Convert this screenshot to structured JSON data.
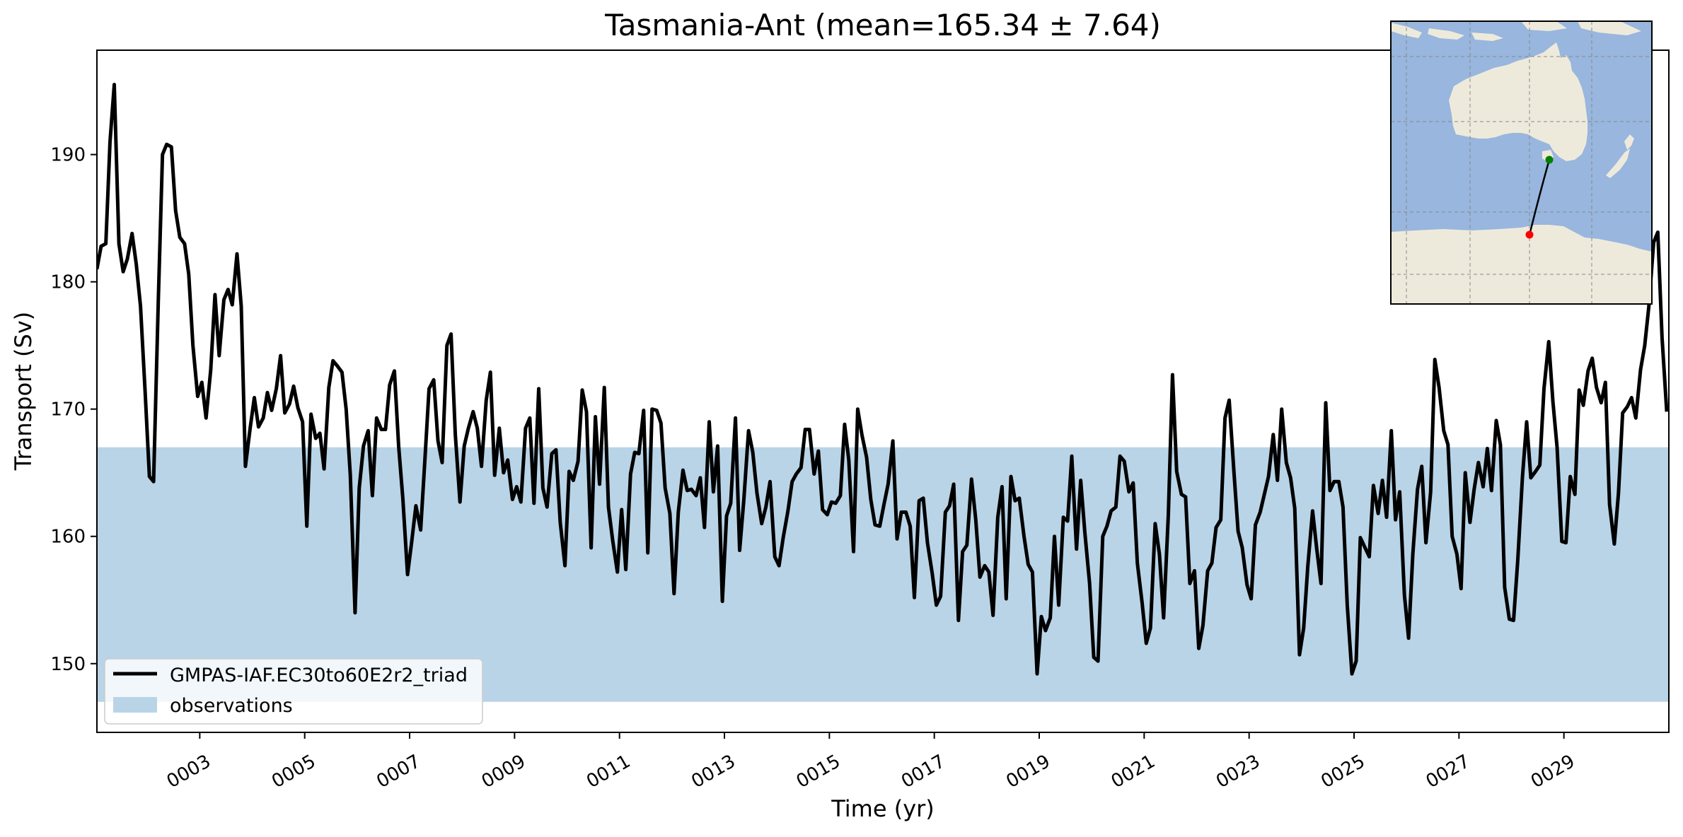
{
  "chart_data": {
    "type": "line",
    "title": "Tasmania-Ant (mean=165.34 ± 7.64)",
    "xlabel": "Time (yr)",
    "ylabel": "Transport (Sv)",
    "xlim": [
      1.04,
      31.0
    ],
    "ylim": [
      144.6,
      198.2
    ],
    "xticks": [
      3,
      5,
      7,
      9,
      11,
      13,
      15,
      17,
      19,
      21,
      23,
      25,
      27,
      29
    ],
    "xtick_labels": [
      "0003",
      "0005",
      "0007",
      "0009",
      "0011",
      "0013",
      "0015",
      "0017",
      "0019",
      "0021",
      "0023",
      "0025",
      "0027",
      "0029"
    ],
    "yticks": [
      150,
      160,
      170,
      180,
      190
    ],
    "ytick_labels": [
      "150",
      "160",
      "170",
      "180",
      "190"
    ],
    "observations_band": {
      "name": "observations",
      "ymin": 147.0,
      "ymax": 167.0,
      "color": "#b9d4e7"
    },
    "legend_position": "lower-left",
    "grid": false,
    "series": [
      {
        "name": "GMPAS-IAF.EC30to60E2r2_triad",
        "color": "#000000",
        "x": [
          1.04,
          1.12,
          1.21,
          1.29,
          1.37,
          1.46,
          1.54,
          1.62,
          1.71,
          1.79,
          1.87,
          1.96,
          2.04,
          2.12,
          2.21,
          2.29,
          2.37,
          2.46,
          2.54,
          2.62,
          2.71,
          2.79,
          2.87,
          2.96,
          3.04,
          3.12,
          3.21,
          3.29,
          3.37,
          3.46,
          3.54,
          3.62,
          3.71,
          3.79,
          3.87,
          3.96,
          4.04,
          4.12,
          4.21,
          4.29,
          4.37,
          4.46,
          4.54,
          4.62,
          4.71,
          4.79,
          4.87,
          4.96,
          5.04,
          5.12,
          5.21,
          5.29,
          5.37,
          5.46,
          5.54,
          5.62,
          5.71,
          5.79,
          5.87,
          5.96,
          6.04,
          6.12,
          6.21,
          6.29,
          6.37,
          6.46,
          6.54,
          6.62,
          6.71,
          6.79,
          6.87,
          6.96,
          7.04,
          7.12,
          7.21,
          7.29,
          7.37,
          7.46,
          7.54,
          7.62,
          7.71,
          7.79,
          7.87,
          7.96,
          8.04,
          8.12,
          8.21,
          8.29,
          8.37,
          8.46,
          8.54,
          8.62,
          8.71,
          8.79,
          8.87,
          8.96,
          9.04,
          9.12,
          9.21,
          9.29,
          9.37,
          9.46,
          9.54,
          9.62,
          9.71,
          9.79,
          9.87,
          9.96,
          10.04,
          10.12,
          10.21,
          10.29,
          10.37,
          10.46,
          10.54,
          10.62,
          10.71,
          10.79,
          10.87,
          10.96,
          11.04,
          11.12,
          11.21,
          11.29,
          11.37,
          11.46,
          11.54,
          11.62,
          11.71,
          11.79,
          11.87,
          11.96,
          12.04,
          12.12,
          12.21,
          12.29,
          12.37,
          12.46,
          12.54,
          12.62,
          12.71,
          12.79,
          12.87,
          12.96,
          13.04,
          13.12,
          13.21,
          13.29,
          13.37,
          13.46,
          13.54,
          13.62,
          13.71,
          13.79,
          13.87,
          13.96,
          14.04,
          14.12,
          14.21,
          14.29,
          14.37,
          14.46,
          14.54,
          14.62,
          14.71,
          14.79,
          14.87,
          14.96,
          15.04,
          15.12,
          15.21,
          15.29,
          15.37,
          15.46,
          15.54,
          15.62,
          15.71,
          15.79,
          15.87,
          15.96,
          16.04,
          16.12,
          16.21,
          16.29,
          16.37,
          16.46,
          16.54,
          16.62,
          16.71,
          16.79,
          16.87,
          16.96,
          17.04,
          17.12,
          17.21,
          17.29,
          17.37,
          17.46,
          17.54,
          17.62,
          17.71,
          17.79,
          17.87,
          17.96,
          18.04,
          18.12,
          18.21,
          18.29,
          18.37,
          18.46,
          18.54,
          18.62,
          18.71,
          18.79,
          18.87,
          18.96,
          19.04,
          19.12,
          19.21,
          19.29,
          19.37,
          19.46,
          19.54,
          19.62,
          19.71,
          19.79,
          19.87,
          19.96,
          20.04,
          20.12,
          20.21,
          20.29,
          20.37,
          20.46,
          20.54,
          20.62,
          20.71,
          20.79,
          20.87,
          20.96,
          21.04,
          21.12,
          21.21,
          21.29,
          21.37,
          21.46,
          21.54,
          21.62,
          21.71,
          21.79,
          21.87,
          21.96,
          22.04,
          22.12,
          22.21,
          22.29,
          22.37,
          22.46,
          22.54,
          22.62,
          22.71,
          22.79,
          22.87,
          22.96,
          23.04,
          23.12,
          23.21,
          23.29,
          23.37,
          23.46,
          23.54,
          23.62,
          23.71,
          23.79,
          23.87,
          23.96,
          24.04,
          24.12,
          24.21,
          24.29,
          24.37,
          24.46,
          24.54,
          24.62,
          24.71,
          24.79,
          24.87,
          24.96,
          25.04,
          25.12,
          25.21,
          25.29,
          25.37,
          25.46,
          25.54,
          25.62,
          25.71,
          25.79,
          25.87,
          25.96,
          26.04,
          26.12,
          26.21,
          26.29,
          26.37,
          26.46,
          26.54,
          26.62,
          26.71,
          26.79,
          26.87,
          26.96,
          27.04,
          27.12,
          27.21,
          27.29,
          27.37,
          27.46,
          27.54,
          27.62,
          27.71,
          27.79,
          27.87,
          27.96,
          28.04,
          28.12,
          28.21,
          28.29,
          28.37,
          28.46,
          28.54,
          28.62,
          28.71,
          28.79,
          28.87,
          28.96,
          29.04,
          29.12,
          29.21,
          29.29,
          29.37,
          29.46,
          29.54,
          29.62,
          29.71,
          29.79,
          29.87,
          29.96,
          30.04,
          30.12,
          30.21,
          30.29,
          30.37,
          30.46,
          30.54,
          30.62,
          30.71,
          30.79,
          30.87,
          30.96
        ],
        "y": [
          181.0,
          182.8,
          183.0,
          191.0,
          195.5,
          183.0,
          180.8,
          181.8,
          183.8,
          181.4,
          178.1,
          171.3,
          164.7,
          164.3,
          178.6,
          190.0,
          190.8,
          190.6,
          185.6,
          183.5,
          183.0,
          180.6,
          175.0,
          171.0,
          172.1,
          169.3,
          173.1,
          179.0,
          174.2,
          178.6,
          179.4,
          178.2,
          182.2,
          178.1,
          165.5,
          168.5,
          170.9,
          168.6,
          169.3,
          171.3,
          169.9,
          171.6,
          174.2,
          169.7,
          170.4,
          171.8,
          170.1,
          169.0,
          160.8,
          169.6,
          167.7,
          168.1,
          165.3,
          171.7,
          173.8,
          173.4,
          172.9,
          170.0,
          164.8,
          154.0,
          163.8,
          167.1,
          168.3,
          163.2,
          169.3,
          168.4,
          168.4,
          171.9,
          173.0,
          167.1,
          163.0,
          157.0,
          159.6,
          162.4,
          160.5,
          165.9,
          171.6,
          172.3,
          167.5,
          165.8,
          175.0,
          175.9,
          168.0,
          162.7,
          167.1,
          168.5,
          169.8,
          168.5,
          165.5,
          170.7,
          172.9,
          164.8,
          168.5,
          165.0,
          166.0,
          162.9,
          163.9,
          162.7,
          168.5,
          169.3,
          162.6,
          171.6,
          163.8,
          162.3,
          166.5,
          166.8,
          161.1,
          157.7,
          165.1,
          164.4,
          165.9,
          171.5,
          169.8,
          159.1,
          169.4,
          164.1,
          171.7,
          162.3,
          159.7,
          157.2,
          162.1,
          157.4,
          164.9,
          166.6,
          166.5,
          169.9,
          158.7,
          170.0,
          169.9,
          168.9,
          163.8,
          161.8,
          155.5,
          161.9,
          165.2,
          163.6,
          163.7,
          163.2,
          164.6,
          160.7,
          169.0,
          163.5,
          167.1,
          154.9,
          161.6,
          162.6,
          169.3,
          158.9,
          162.9,
          168.3,
          166.6,
          163.4,
          161.0,
          162.3,
          164.3,
          158.4,
          157.7,
          159.9,
          162.0,
          164.3,
          164.9,
          165.4,
          168.4,
          168.4,
          164.9,
          166.7,
          162.1,
          161.7,
          162.7,
          162.6,
          163.2,
          168.8,
          166.0,
          158.8,
          170.0,
          168.0,
          166.2,
          162.9,
          160.9,
          160.8,
          162.5,
          164.1,
          167.5,
          159.8,
          161.9,
          161.9,
          160.8,
          155.2,
          162.8,
          163.0,
          159.5,
          157.1,
          154.6,
          155.3,
          161.9,
          162.4,
          164.1,
          153.4,
          158.8,
          159.3,
          164.5,
          161.3,
          156.8,
          157.7,
          157.2,
          153.8,
          161.5,
          163.9,
          155.1,
          164.7,
          162.8,
          163.0,
          160.0,
          157.8,
          157.2,
          149.2,
          153.7,
          152.6,
          153.6,
          160.0,
          154.6,
          161.5,
          161.2,
          166.3,
          159.0,
          164.4,
          160.3,
          156.3,
          150.5,
          150.2,
          160.0,
          160.8,
          162.0,
          162.3,
          166.3,
          165.9,
          163.5,
          164.2,
          157.9,
          154.8,
          151.6,
          152.8,
          161.0,
          158.6,
          153.6,
          161.7,
          172.7,
          165.1,
          163.3,
          163.1,
          156.3,
          157.3,
          151.2,
          153.0,
          157.3,
          157.9,
          160.7,
          161.3,
          169.3,
          170.7,
          165.1,
          160.4,
          159.1,
          156.2,
          155.1,
          160.9,
          161.9,
          163.3,
          164.7,
          168.0,
          164.4,
          170.0,
          165.8,
          164.6,
          162.2,
          150.7,
          152.8,
          157.7,
          162.0,
          159.0,
          156.3,
          170.5,
          163.6,
          164.3,
          164.3,
          162.3,
          154.6,
          149.2,
          150.2,
          159.9,
          159.1,
          158.4,
          164.0,
          161.8,
          164.4,
          161.5,
          168.3,
          161.3,
          163.5,
          155.4,
          152.0,
          158.6,
          163.7,
          165.5,
          159.5,
          163.5,
          173.9,
          171.7,
          168.3,
          167.2,
          160.0,
          158.6,
          155.9,
          165.0,
          161.1,
          163.7,
          165.8,
          163.9,
          166.9,
          163.6,
          169.1,
          167.2,
          156.0,
          153.5,
          153.4,
          158.1,
          164.7,
          169.0,
          164.6,
          165.1,
          165.6,
          171.6,
          175.3,
          170.6,
          167.0,
          159.6,
          159.5,
          164.7,
          163.3,
          171.5,
          170.3,
          173.0,
          174.0,
          171.7,
          170.5,
          172.1,
          162.5,
          159.4,
          163.4,
          169.7,
          170.2,
          170.9,
          169.3,
          173.1,
          175.0,
          178.1,
          183.1,
          183.9,
          175.6,
          169.8
        ]
      }
    ]
  },
  "inset_map": {
    "ocean_color": "#98b6de",
    "land_color": "#eeeadb",
    "start_marker_color": "#008000",
    "end_marker_color": "#ff0000"
  }
}
